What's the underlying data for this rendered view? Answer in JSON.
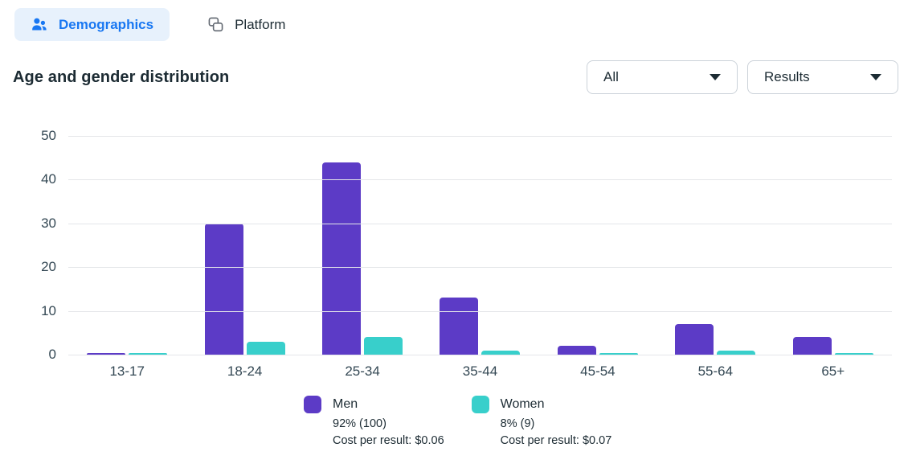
{
  "tabs": [
    {
      "label": "Demographics",
      "icon": "people-icon",
      "active": true
    },
    {
      "label": "Platform",
      "icon": "layers-icon",
      "active": false
    }
  ],
  "header": {
    "title": "Age and gender distribution"
  },
  "filters": {
    "breakdown": {
      "value": "All"
    },
    "metric": {
      "value": "Results"
    }
  },
  "chart_data": {
    "type": "bar",
    "title": "Age and gender distribution",
    "categories": [
      "13-17",
      "18-24",
      "25-34",
      "35-44",
      "45-54",
      "55-64",
      "65+"
    ],
    "series": [
      {
        "name": "Men",
        "color": "#5C3BC6",
        "values": [
          0.3,
          30,
          44,
          13,
          2,
          7,
          4
        ]
      },
      {
        "name": "Women",
        "color": "#38CFCB",
        "values": [
          0.2,
          3,
          4,
          1,
          0.3,
          1,
          0.3
        ]
      }
    ],
    "xlabel": "",
    "ylabel": "",
    "ylim": [
      0,
      50
    ],
    "yticks": [
      0,
      10,
      20,
      30,
      40,
      50
    ],
    "grid": true,
    "legend_position": "bottom"
  },
  "legend": [
    {
      "name": "Men",
      "share": "92% (100)",
      "cost": "Cost per result: $0.06",
      "color": "#5C3BC6"
    },
    {
      "name": "Women",
      "share": "8% (9)",
      "cost": "Cost per result: $0.07",
      "color": "#38CFCB"
    }
  ],
  "colors": {
    "accent_blue": "#1877F2",
    "tab_active_bg": "#E7F1FC",
    "text_dark": "#1C2B33",
    "axis_text": "#344854",
    "gridline": "#E4E6E9",
    "dropdown_border": "#CBD2D9",
    "men_bar": "#5C3BC6",
    "women_bar": "#38CFCB"
  }
}
